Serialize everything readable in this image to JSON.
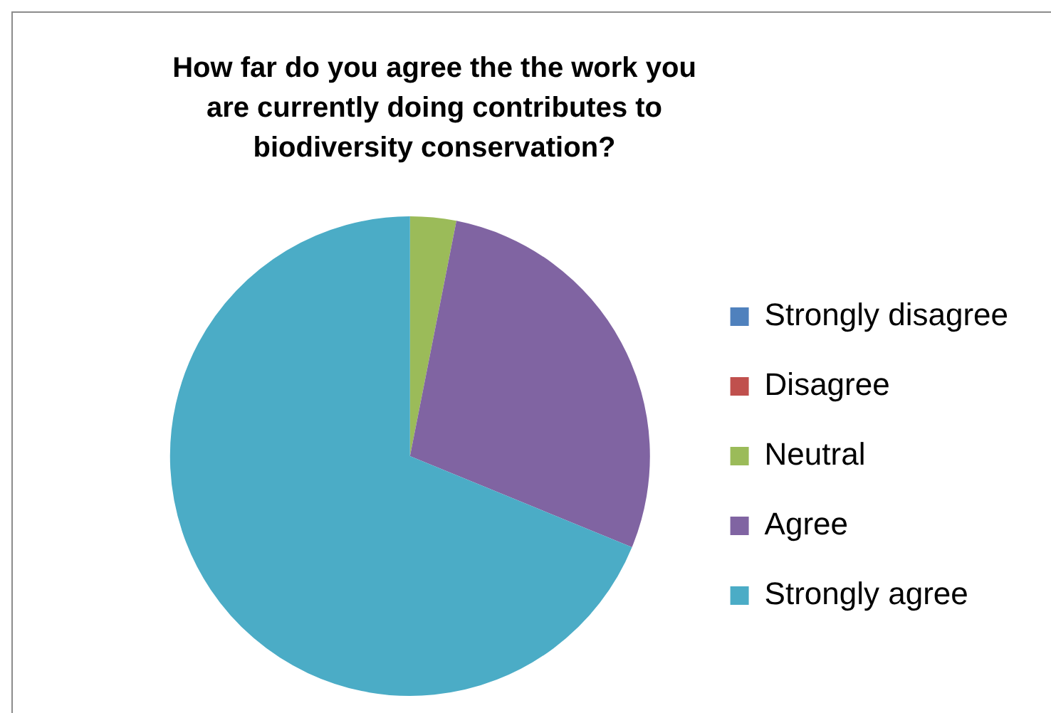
{
  "chart_data": {
    "type": "pie",
    "title": "How far do you agree the the work you are currently doing contributes to biodiversity conservation?",
    "categories": [
      "Strongly disagree",
      "Disagree",
      "Neutral",
      "Agree",
      "Strongly agree"
    ],
    "values": [
      0,
      0,
      3.1,
      28.1,
      68.8
    ],
    "colors": [
      "#4f81bd",
      "#c0504d",
      "#9bbb59",
      "#8064a2",
      "#4bacc6"
    ],
    "legend": "right"
  }
}
